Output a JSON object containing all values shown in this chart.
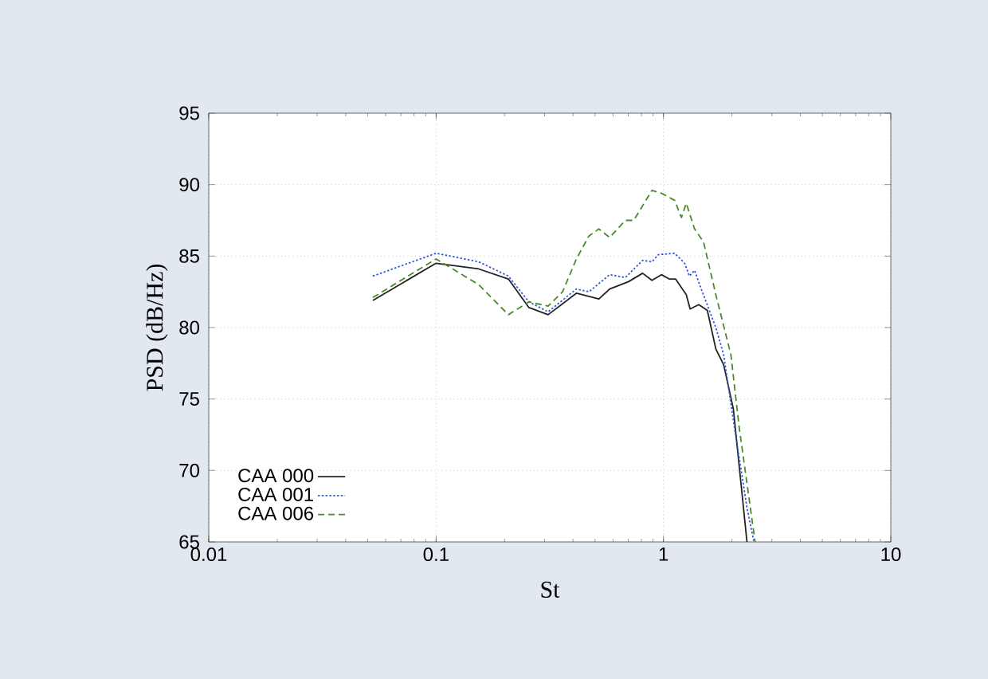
{
  "chart_data": {
    "type": "line",
    "xlabel": "St",
    "ylabel": "PSD (dB/Hz)",
    "log": "x",
    "xlim": [
      0.01,
      10
    ],
    "ylim": [
      65,
      95
    ],
    "xticks": [
      0.01,
      0.1,
      1,
      10
    ],
    "yticks": [
      65,
      70,
      75,
      80,
      85,
      90,
      95
    ],
    "grid": true,
    "legend": "bottom left",
    "series": [
      {
        "name": "CAA 000",
        "color": "#222222",
        "line_style": "solid",
        "x": [
          0.0527,
          0.1,
          0.154,
          0.208,
          0.256,
          0.311,
          0.414,
          0.52,
          0.58,
          0.7,
          0.81,
          0.89,
          0.98,
          1.06,
          1.13,
          1.26,
          1.31,
          1.43,
          1.56,
          1.7,
          1.84,
          2.03,
          2.33
        ],
        "values": [
          81.9,
          84.5,
          84.1,
          83.4,
          81.4,
          80.9,
          82.4,
          82.0,
          82.7,
          83.2,
          83.8,
          83.3,
          83.7,
          83.4,
          83.4,
          82.3,
          81.3,
          81.6,
          81.2,
          78.5,
          77.4,
          74.3,
          65
        ]
      },
      {
        "name": "CAA 001",
        "color": "#3355dd",
        "line_style": "dotted",
        "x": [
          0.0527,
          0.1,
          0.154,
          0.208,
          0.256,
          0.311,
          0.414,
          0.47,
          0.58,
          0.68,
          0.81,
          0.89,
          0.95,
          1.12,
          1.24,
          1.3,
          1.37,
          1.45,
          1.7,
          1.84,
          2.03,
          2.33,
          2.5
        ],
        "values": [
          83.6,
          85.2,
          84.6,
          83.6,
          81.8,
          81.1,
          82.7,
          82.5,
          83.7,
          83.5,
          84.7,
          84.6,
          85.1,
          85.2,
          84.5,
          83.6,
          84.0,
          82.9,
          80.0,
          78.1,
          73.5,
          67.4,
          65
        ]
      },
      {
        "name": "CAA 006",
        "color": "#4a8a2a",
        "line_style": "dashed",
        "x": [
          0.0527,
          0.1,
          0.154,
          0.208,
          0.256,
          0.311,
          0.36,
          0.414,
          0.47,
          0.52,
          0.58,
          0.68,
          0.74,
          0.89,
          0.98,
          1.12,
          1.2,
          1.26,
          1.37,
          1.5,
          1.7,
          1.98,
          2.15,
          2.53
        ],
        "values": [
          82.1,
          84.8,
          83.0,
          80.9,
          81.8,
          81.5,
          82.5,
          84.8,
          86.4,
          86.9,
          86.3,
          87.5,
          87.5,
          89.6,
          89.4,
          88.9,
          87.7,
          88.7,
          86.9,
          86.0,
          82.3,
          78.1,
          73.1,
          65
        ]
      }
    ]
  }
}
